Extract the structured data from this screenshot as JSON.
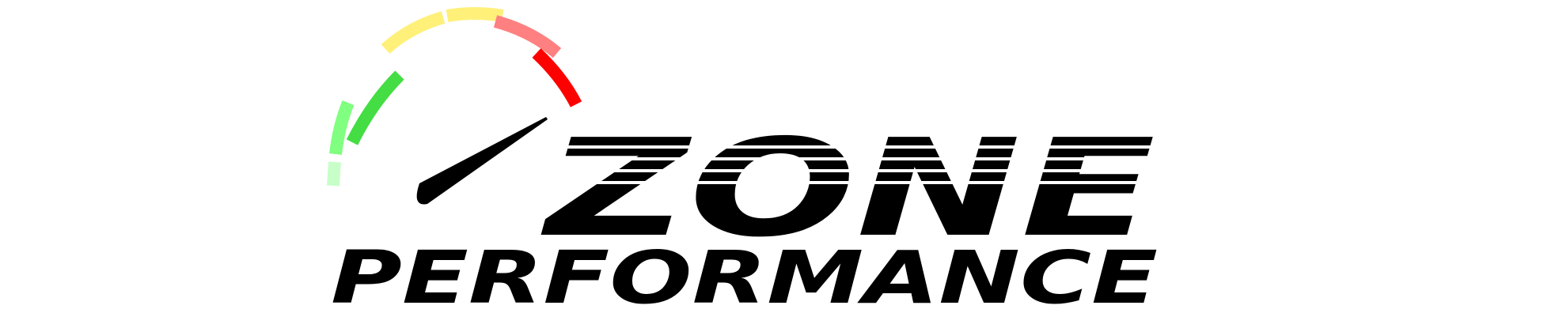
{
  "logo": {
    "word1": "ZONE",
    "word2": "PERFORMANCE"
  }
}
